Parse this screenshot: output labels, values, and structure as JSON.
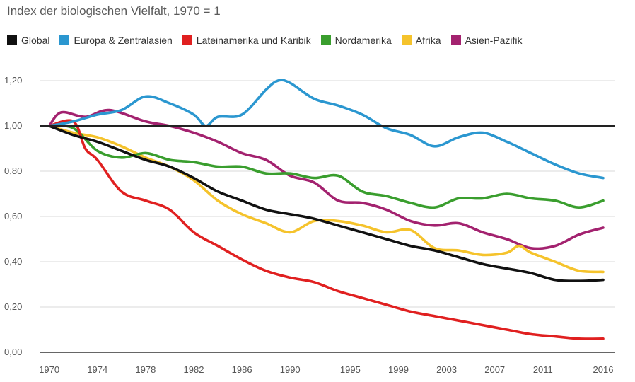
{
  "chart_data": {
    "type": "line",
    "title": "Index der biologischen Vielfalt, 1970 = 1",
    "x_tick_labels": [
      "1970",
      "1974",
      "1978",
      "1982",
      "1986",
      "1990",
      "1995",
      "1999",
      "2003",
      "2007",
      "2011",
      "2016"
    ],
    "x_range": [
      1969.2,
      2017
    ],
    "y_tick_labels": [
      "0,00",
      "0,20",
      "0,40",
      "0,60",
      "0,80",
      "1,00",
      "1,20"
    ],
    "ylim": [
      0,
      1.2
    ],
    "y_ticks": [
      0,
      0.2,
      0.4,
      0.6,
      0.8,
      1.0,
      1.2
    ],
    "baseline": 1.0,
    "grid": true,
    "legend_position": "top-left",
    "series": [
      {
        "name": "Global",
        "color": "#111111",
        "x": [
          1970,
          1972,
          1974,
          1976,
          1978,
          1980,
          1982,
          1984,
          1986,
          1988,
          1990,
          1992,
          1994,
          1996,
          1998,
          2000,
          2002,
          2004,
          2006,
          2008,
          2010,
          2012,
          2014,
          2016
        ],
        "y": [
          1.0,
          0.96,
          0.93,
          0.89,
          0.85,
          0.82,
          0.77,
          0.71,
          0.67,
          0.63,
          0.61,
          0.59,
          0.56,
          0.53,
          0.5,
          0.47,
          0.45,
          0.42,
          0.39,
          0.37,
          0.35,
          0.32,
          0.315,
          0.32
        ]
      },
      {
        "name": "Europa & Zentralasien",
        "color": "#2b97d0",
        "x": [
          1970,
          1972,
          1974,
          1976,
          1978,
          1980,
          1982,
          1983,
          1984,
          1986,
          1988,
          1989,
          1990,
          1992,
          1994,
          1996,
          1998,
          2000,
          2002,
          2004,
          2006,
          2008,
          2010,
          2012,
          2014,
          2016
        ],
        "y": [
          1.0,
          1.02,
          1.05,
          1.07,
          1.13,
          1.1,
          1.05,
          1.0,
          1.04,
          1.05,
          1.16,
          1.2,
          1.19,
          1.12,
          1.09,
          1.05,
          0.99,
          0.96,
          0.91,
          0.95,
          0.97,
          0.93,
          0.88,
          0.83,
          0.79,
          0.77
        ]
      },
      {
        "name": "Lateinamerika und Karibik",
        "color": "#e02020",
        "x": [
          1970,
          1972,
          1973,
          1974,
          1976,
          1978,
          1980,
          1982,
          1984,
          1986,
          1988,
          1990,
          1992,
          1994,
          1996,
          1998,
          2000,
          2002,
          2004,
          2006,
          2008,
          2010,
          2012,
          2014,
          2016
        ],
        "y": [
          1.0,
          1.02,
          0.9,
          0.85,
          0.71,
          0.67,
          0.63,
          0.53,
          0.47,
          0.41,
          0.36,
          0.33,
          0.31,
          0.27,
          0.24,
          0.21,
          0.18,
          0.16,
          0.14,
          0.12,
          0.1,
          0.08,
          0.07,
          0.06,
          0.06
        ]
      },
      {
        "name": "Nordamerika",
        "color": "#3a9e2e",
        "x": [
          1970,
          1972,
          1974,
          1976,
          1978,
          1980,
          1982,
          1984,
          1986,
          1988,
          1990,
          1992,
          1994,
          1996,
          1998,
          2000,
          2002,
          2004,
          2006,
          2008,
          2010,
          2012,
          2014,
          2016
        ],
        "y": [
          1.0,
          0.99,
          0.89,
          0.86,
          0.88,
          0.85,
          0.84,
          0.82,
          0.82,
          0.79,
          0.79,
          0.77,
          0.78,
          0.71,
          0.69,
          0.66,
          0.64,
          0.68,
          0.68,
          0.7,
          0.68,
          0.67,
          0.64,
          0.67
        ]
      },
      {
        "name": "Afrika",
        "color": "#f5c32c",
        "x": [
          1970,
          1972,
          1974,
          1976,
          1978,
          1980,
          1982,
          1984,
          1986,
          1988,
          1990,
          1992,
          1994,
          1996,
          1998,
          2000,
          2002,
          2004,
          2006,
          2008,
          2009,
          2010,
          2012,
          2014,
          2016
        ],
        "y": [
          1.0,
          0.97,
          0.95,
          0.91,
          0.86,
          0.82,
          0.76,
          0.67,
          0.61,
          0.57,
          0.53,
          0.58,
          0.58,
          0.56,
          0.53,
          0.54,
          0.46,
          0.45,
          0.43,
          0.44,
          0.47,
          0.44,
          0.4,
          0.36,
          0.355
        ]
      },
      {
        "name": "Asien-Pazifik",
        "color": "#a3226f",
        "x": [
          1970,
          1971,
          1973,
          1975,
          1978,
          1980,
          1982,
          1984,
          1986,
          1988,
          1990,
          1992,
          1994,
          1996,
          1998,
          2000,
          2002,
          2004,
          2006,
          2008,
          2010,
          2012,
          2014,
          2016
        ],
        "y": [
          1.0,
          1.06,
          1.04,
          1.07,
          1.02,
          1.0,
          0.97,
          0.93,
          0.88,
          0.85,
          0.78,
          0.75,
          0.67,
          0.66,
          0.63,
          0.58,
          0.56,
          0.57,
          0.53,
          0.5,
          0.46,
          0.47,
          0.52,
          0.55
        ]
      }
    ]
  }
}
